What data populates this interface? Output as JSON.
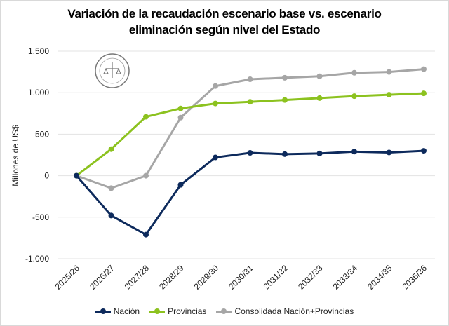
{
  "chart_data": {
    "type": "line",
    "title": "Variación de la recaudación escenario base vs. escenario eliminación según nivel del Estado",
    "title_lines": [
      "Variación de la recaudación escenario base vs. escenario",
      "eliminación según nivel del Estado"
    ],
    "xlabel": "",
    "ylabel": "Millones de US$",
    "ylim": [
      -1000,
      1500
    ],
    "yticks": [
      -1000,
      -500,
      0,
      500,
      1000,
      1500
    ],
    "ytick_labels": [
      "-1.000",
      "-500",
      "0",
      "500",
      "1.000",
      "1.500"
    ],
    "grid": true,
    "legend_position": "bottom",
    "categories": [
      "2025/26",
      "2026/27",
      "2027/28",
      "2028/29",
      "2029/30",
      "2030/31",
      "2031/32",
      "2032/33",
      "2033/34",
      "2034/35",
      "2035/36"
    ],
    "series": [
      {
        "name": "Nación",
        "color": "#0d2a5c",
        "values": [
          0,
          -480,
          -710,
          -110,
          220,
          275,
          260,
          268,
          290,
          280,
          300
        ]
      },
      {
        "name": "Provincias",
        "color": "#8cc21f",
        "values": [
          0,
          320,
          710,
          810,
          870,
          890,
          912,
          935,
          958,
          975,
          992
        ]
      },
      {
        "name": "Consolidada Nación+Provincias",
        "color": "#a6a6a6",
        "values": [
          0,
          -150,
          0,
          700,
          1080,
          1162,
          1180,
          1198,
          1240,
          1250,
          1284
        ]
      }
    ]
  }
}
